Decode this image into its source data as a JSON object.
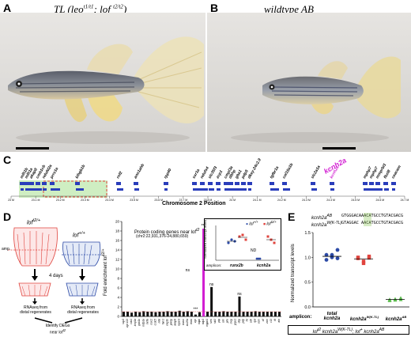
{
  "panelA": {
    "letter": "A",
    "title": "TL (leo",
    "t1": "t1/t1",
    "mid": "; lof ",
    "t2": "t2/t2",
    "close": ")"
  },
  "panelB": {
    "letter": "B",
    "title": "wildtype AB"
  },
  "panelC": {
    "letter": "C",
    "axis_title": "Chromosome 2 Position",
    "genes": [
      "mllt1b",
      "mllt1a",
      "akap8",
      "cmb1cb",
      "ndufd2a",
      "prrx1a",
      "klhgb1b",
      "rnf2",
      "ano1ahb",
      "rpp40",
      "ssr1a",
      "ndufs4",
      "slc35f3",
      "zcp1",
      "cmpl3a",
      "dbhp",
      "gba1",
      "pdp5",
      "dkey-24c2.9",
      "tgfbr1a",
      "col15a1b",
      "slc2a1a",
      "kcnh2a",
      "mphp7",
      "mphp7",
      "mmprbl1",
      "fbxl8",
      "ceacam"
    ],
    "highlight_gene": "kcnh2a",
    "ticks": [
      "23 M",
      "23.1 M",
      "23.2 M",
      "23.3 M",
      "23.4 M",
      "23.5 M",
      "23.6 M",
      "23.7 M",
      "23.8 M",
      "24 M",
      "24.1 M",
      "24.2 M",
      "24.3 M",
      "24.4 M",
      "24.5 M",
      "24.6 M",
      "24.7 M"
    ]
  },
  "panelD": {
    "letter": "D",
    "lof_het": "lof",
    "lof_het_sup": "t2/+",
    "wt": "lof",
    "wt_sup": "+/+",
    "amp": "amp.",
    "days": "4 days",
    "rnaseq1": "RNAseq from\ndistal regenerates",
    "rnaseq2": "RNAseq from\ndistal regenerates",
    "identify": "Identify DEGs\nnear lof",
    "identify_sup": "t2",
    "chart_title": "Protein coding genes near lof",
    "chart_title_sup": "t2",
    "chart_sub": "(chr2:22,931,376-24,880,659)",
    "ylabel": "Fold enrichment lof",
    "ylabel_sup": "t2/+",
    "sig_ns": "ns",
    "sig_star": "***",
    "inset": {
      "ylabel": "Normalized transcript levels",
      "legend1": "lof",
      "legend1_sup": "+/+",
      "legend2": "lof",
      "legend2_sup": "t2/+",
      "amplicon": "amplicon:",
      "g1": "runx2b",
      "g2": "kcnh2a",
      "nd": "ND"
    }
  },
  "panelE": {
    "letter": "E",
    "seq_label1": "kcnh2a",
    "seq_label1_sup": "AB",
    "seq_label2": "kcnh2a",
    "seq_label2_sup": "W(K-TL)",
    "seq1": "GTGGGACAAACATGCCTGTACGACG",
    "seq2": "GTAGGAC AACATGCCTGTACGACG",
    "ylabel": "Normalized transcript levels",
    "amplicon": "amplicon:",
    "cat1": "total",
    "cat1b": "kcnh2a",
    "cat2": "kcnh2a",
    "cat2_sup": "W(K-TL)",
    "cat3": "kcnh2a",
    "cat3_sup": "AB",
    "yticks": [
      "0.0",
      "0.5",
      "1.0",
      "1.5"
    ],
    "caption": "lof",
    "caption_sup1": "t2",
    "caption_mid": " kcnh2a",
    "caption_sup2": "W(K-TL)",
    "caption_end": "; lof",
    "caption_sup3": "+",
    "caption_last": " kcnh2a",
    "caption_sup4": "AB"
  },
  "chart_data": [
    {
      "type": "bar",
      "title": "Protein coding genes near lof t2",
      "ylabel": "Fold enrichment lof t2/+",
      "ylim": [
        0,
        20
      ],
      "yticks": [
        "0",
        "2",
        "4",
        "6",
        "8",
        "10",
        "12",
        "14",
        "16",
        "18",
        "20"
      ],
      "categories": [
        "scp3",
        "zgc:113",
        "cds1",
        "kcnj1a",
        "gnb1b",
        "mrfp1a",
        "mrfla",
        "isoc2",
        "ccdc5",
        "nfat",
        "fam1",
        "eng1b",
        "pnrbp",
        "akap8",
        "npsn3",
        "tmem",
        "slc25a",
        "rhow",
        "zgc",
        "ndpk",
        "ndp3",
        "mppb1",
        "sms",
        "stk2",
        "ptp",
        "cim",
        "phs",
        "mop",
        "prps1",
        "dbp",
        "pdp",
        "fst",
        "cdh",
        "tpd",
        "ecm",
        "clf",
        "zcm",
        "r13",
        "tft",
        "ahr"
      ],
      "values": [
        1.0,
        1.0,
        0.8,
        1.0,
        0.9,
        1.1,
        1.0,
        1.0,
        0.9,
        1.0,
        1.0,
        1.1,
        1.0,
        1.0,
        1.2,
        1.0,
        1.1,
        1.0,
        0.4,
        0.9,
        18.5,
        1.0,
        6.2,
        1.0,
        1.0,
        1.1,
        1.0,
        1.0,
        1.0,
        4.2,
        1.0,
        1.0,
        1.0,
        1.1,
        1.0,
        1.0,
        1.0,
        1.0,
        1.0,
        1.0
      ]
    },
    {
      "type": "scatter",
      "title": "",
      "ylabel": "Normalized transcript levels",
      "ylim": [
        0,
        1.5
      ],
      "categories": [
        "total kcnh2a",
        "kcnh2a W(K-TL)",
        "kcnh2a AB"
      ],
      "series": [
        {
          "values": [
            1.05,
            1.0,
            0.98,
            0.95,
            1.05,
            1.15
          ],
          "mean": 1.02
        },
        {
          "values": [
            0.98,
            0.92,
            0.99,
            1.0,
            0.88,
            1.02
          ],
          "mean": 0.97
        },
        {
          "values": [
            0.15,
            0.14,
            0.18,
            0.13,
            0.16,
            0.15
          ],
          "mean": 0.15
        }
      ]
    }
  ]
}
